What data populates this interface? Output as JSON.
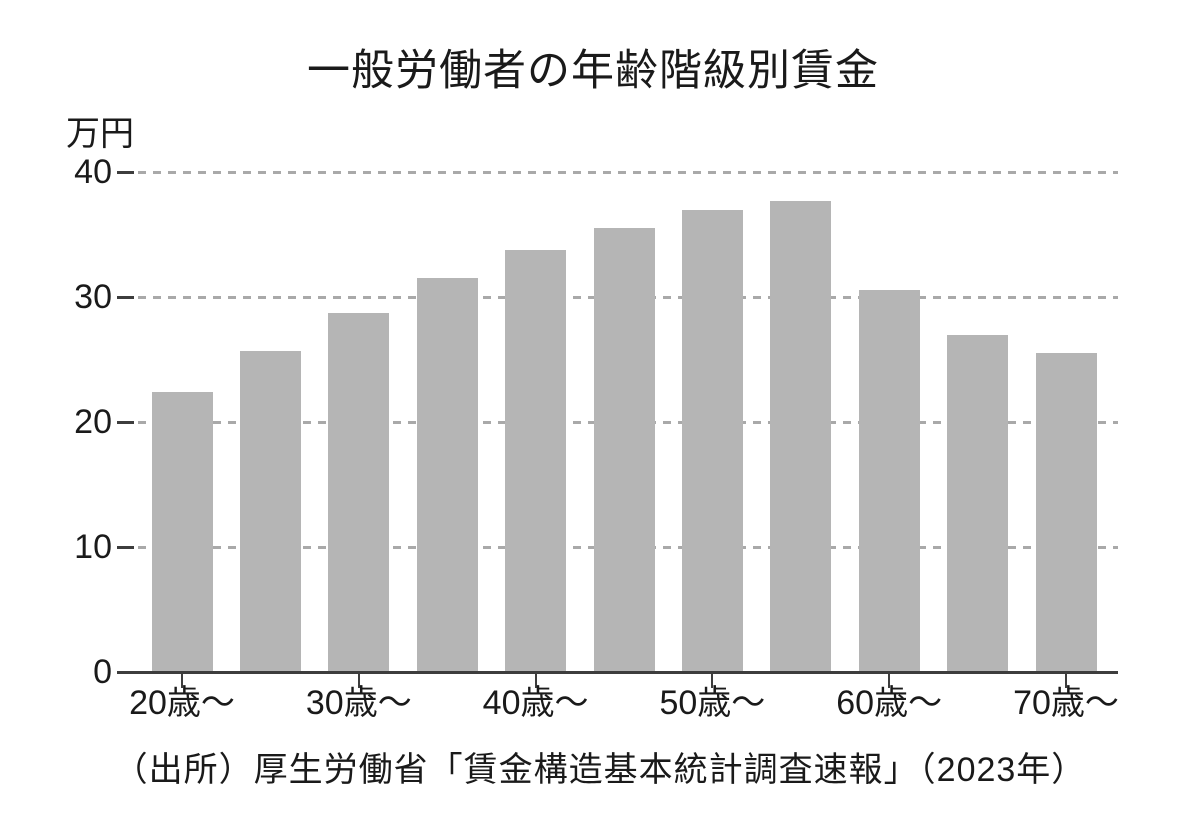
{
  "chart_data": {
    "type": "bar",
    "title": "一般労働者の年齢階級別賃金",
    "unit_label": "万円",
    "values": [
      22.4,
      25.7,
      28.7,
      31.5,
      33.8,
      35.5,
      37.0,
      37.7,
      30.6,
      27.0,
      25.5
    ],
    "x_tick_labels": [
      "20歳〜",
      "30歳〜",
      "40歳〜",
      "50歳〜",
      "60歳〜",
      "70歳〜"
    ],
    "x_tick_bar_indices": [
      0,
      2,
      4,
      6,
      8,
      10
    ],
    "y_ticks": [
      0,
      10,
      20,
      30,
      40
    ],
    "ylim": [
      0,
      42
    ],
    "grid": "dashed-horizontal",
    "legend": "none",
    "bar_color": "#b5b5b5",
    "source": "（出所）厚生労働省「賃金構造基本統計調査速報」（2023年）"
  }
}
